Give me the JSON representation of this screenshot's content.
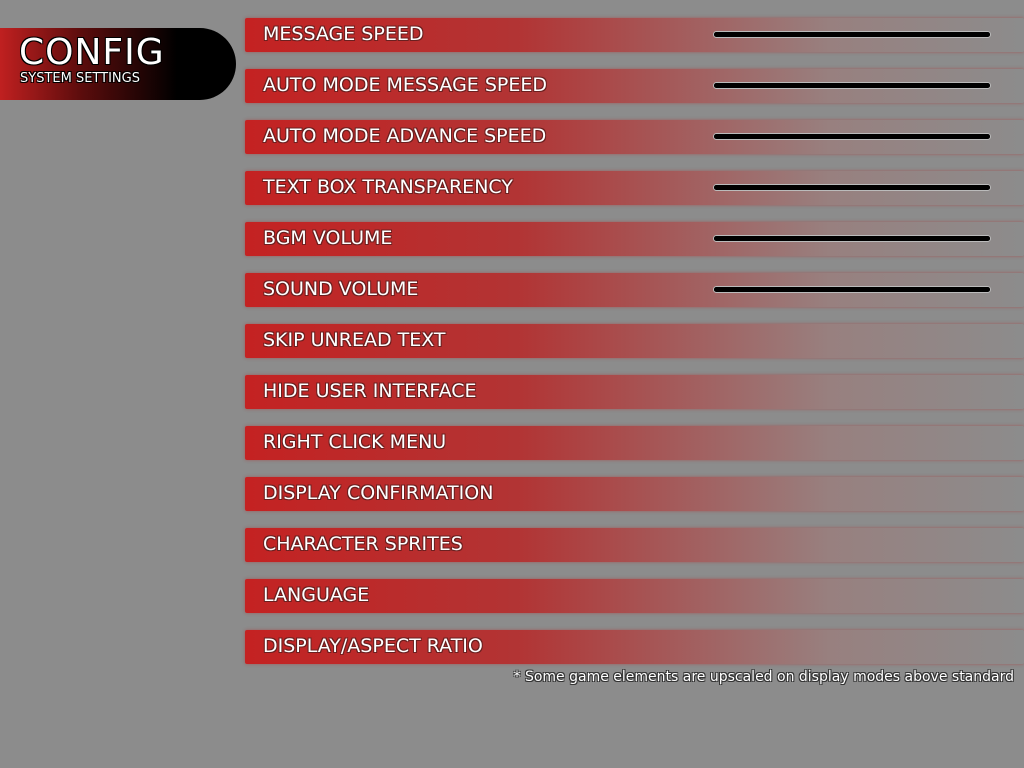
{
  "header": {
    "title": "CONFIG",
    "subtitle": "SYSTEM SETTINGS"
  },
  "settings": [
    {
      "label": "MESSAGE SPEED",
      "slider": 1.0
    },
    {
      "label": "AUTO MODE MESSAGE SPEED",
      "slider": 1.0
    },
    {
      "label": "AUTO MODE ADVANCE SPEED",
      "slider": 1.0
    },
    {
      "label": "TEXT BOX TRANSPARENCY",
      "slider": 1.0
    },
    {
      "label": "BGM VOLUME",
      "slider": 1.0
    },
    {
      "label": "SOUND VOLUME",
      "slider": 1.0
    },
    {
      "label": "SKIP UNREAD TEXT"
    },
    {
      "label": "HIDE USER INTERFACE"
    },
    {
      "label": "RIGHT CLICK MENU"
    },
    {
      "label": "DISPLAY CONFIRMATION"
    },
    {
      "label": "CHARACTER SPRITES"
    },
    {
      "label": "LANGUAGE"
    },
    {
      "label": "DISPLAY/ASPECT RATIO"
    }
  ],
  "note": "* Some game elements are upscaled on display modes above standard"
}
